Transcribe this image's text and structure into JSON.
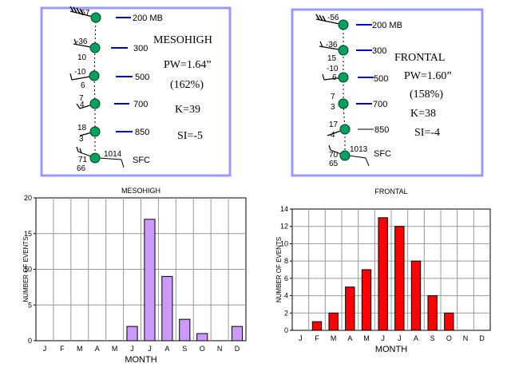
{
  "panels": [
    {
      "id": "mesohigh",
      "levels": [
        {
          "label": "200 MB",
          "top_value": "-57"
        },
        {
          "label": "300",
          "top_value": "-36",
          "bottom_value": "10"
        },
        {
          "label": "500",
          "top_value": "-10",
          "bottom_value": "6"
        },
        {
          "label": "700",
          "top_value": "7",
          "bottom_value": "4"
        },
        {
          "label": "850",
          "top_value": "18",
          "bottom_value": "3"
        },
        {
          "label": "SFC",
          "top_value": "71",
          "bottom_value": "66",
          "pressure": "1014"
        }
      ],
      "title": "MESOHIGH",
      "pw": "PW=1.64”",
      "pct": "(162%)",
      "k": "K=39",
      "si": "SI=-5"
    },
    {
      "id": "frontal",
      "levels": [
        {
          "label": "200 MB",
          "top_value": "-56"
        },
        {
          "label": "300",
          "top_value": "-36",
          "bottom_value": "15"
        },
        {
          "label": "500",
          "top_value": "-10",
          "bottom_value": "6"
        },
        {
          "label": "700",
          "top_value": "7",
          "bottom_value": "3"
        },
        {
          "label": "850",
          "top_value": "17",
          "bottom_value": "4"
        },
        {
          "label": "SFC",
          "top_value": "70",
          "bottom_value": "65",
          "pressure": "1013"
        }
      ],
      "title": "FRONTAL",
      "pw": "PW=1.60”",
      "pct": "(158%)",
      "k": "K=38",
      "si": "SI=-4"
    }
  ],
  "colors": {
    "panel_border": "#9999ff",
    "station_dot": "#00a060",
    "level_line": "#0000cc",
    "mesohigh_bar": "#cc99ff",
    "frontal_bar": "#ff0000"
  },
  "chart_data": [
    {
      "type": "bar",
      "title": "MESOHIGH",
      "xlabel": "MONTH",
      "ylabel": "NUMBER OF EVENTS",
      "categories": [
        "J",
        "F",
        "M",
        "A",
        "M",
        "J",
        "J",
        "A",
        "S",
        "O",
        "N",
        "D"
      ],
      "values": [
        0,
        0,
        0,
        0,
        0,
        2,
        17,
        9,
        3,
        1,
        0,
        2
      ],
      "ylim": [
        0,
        20
      ],
      "yticks": [
        0,
        5,
        10,
        15,
        20
      ],
      "grid": true,
      "color": "#cc99ff"
    },
    {
      "type": "bar",
      "title": "FRONTAL",
      "xlabel": "MONTH",
      "ylabel": "NUMBER OF EVENTS",
      "categories": [
        "J",
        "F",
        "M",
        "A",
        "M",
        "J",
        "J",
        "A",
        "S",
        "O",
        "N",
        "D"
      ],
      "values": [
        0,
        1,
        2,
        5,
        7,
        13,
        12,
        8,
        4,
        2,
        0,
        0
      ],
      "ylim": [
        0,
        14
      ],
      "yticks": [
        0,
        2,
        4,
        6,
        8,
        10,
        12,
        14
      ],
      "grid": true,
      "color": "#ff0000"
    }
  ]
}
